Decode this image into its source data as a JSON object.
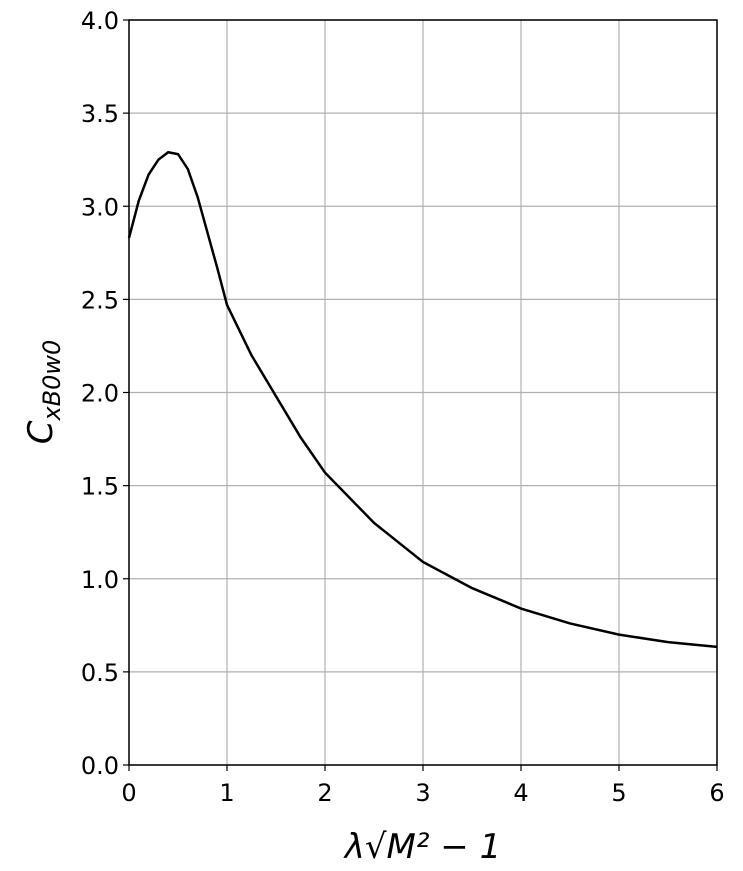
{
  "chart_data": {
    "type": "line",
    "x_label": "λ√M² − 1",
    "y_label": "C",
    "y_label_subscript": "xB0w0",
    "x": [
      0,
      0.1,
      0.2,
      0.3,
      0.4,
      0.5,
      0.6,
      0.7,
      0.8,
      0.9,
      1.0,
      1.25,
      1.5,
      1.75,
      2,
      2.5,
      3,
      3.5,
      4,
      4.5,
      5,
      5.5,
      6
    ],
    "series": [
      {
        "color": "#000000",
        "values": [
          2.83,
          3.03,
          3.17,
          3.25,
          3.29,
          3.28,
          3.2,
          3.05,
          2.86,
          2.67,
          2.47,
          2.2,
          1.98,
          1.76,
          1.57,
          1.3,
          1.09,
          0.95,
          0.84,
          0.76,
          0.7,
          0.66,
          0.634
        ]
      }
    ],
    "xlim": [
      0,
      6
    ],
    "ylim": [
      0,
      4
    ],
    "xticks": [
      0,
      1,
      2,
      3,
      4,
      5,
      6
    ],
    "yticks": [
      {
        "value": 0,
        "label": "0.0"
      },
      {
        "value": 0.5,
        "label": "0.5"
      },
      {
        "value": 1,
        "label": "1.0"
      },
      {
        "value": 1.5,
        "label": "1.5"
      },
      {
        "value": 2,
        "label": "2.0"
      },
      {
        "value": 2.5,
        "label": "2.5"
      },
      {
        "value": 3,
        "label": "3.0"
      },
      {
        "value": 3.5,
        "label": "3.5"
      },
      {
        "value": 4,
        "label": "4.0"
      }
    ],
    "grid": true
  }
}
